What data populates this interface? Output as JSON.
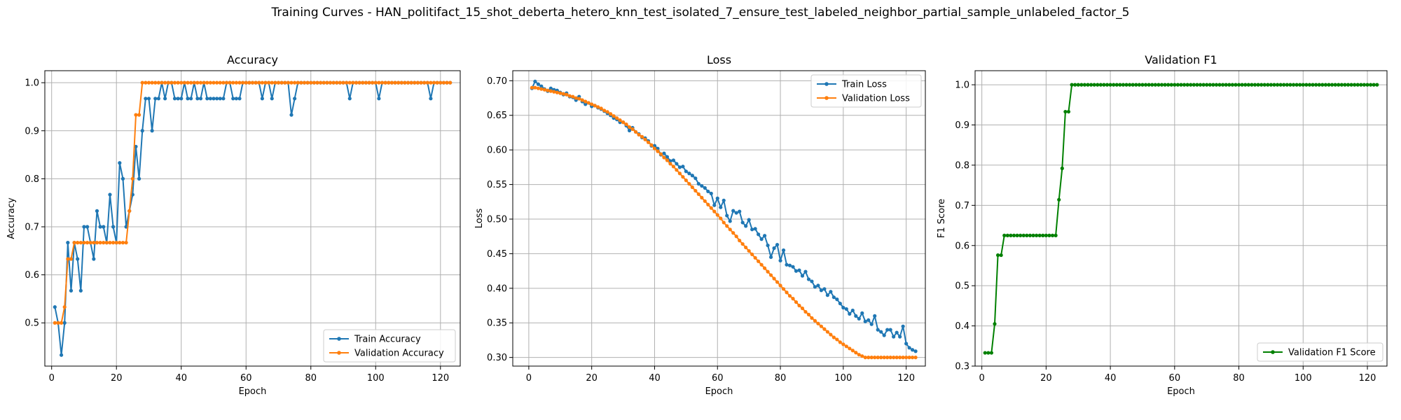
{
  "figure": {
    "suptitle": "Training Curves - HAN_politifact_15_shot_deberta_hetero_knn_test_isolated_7_ensure_test_labeled_neighbor_partial_sample_unlabeled_factor_5"
  },
  "colors": {
    "blue": "#1f77b4",
    "orange": "#ff7f0e",
    "green": "#008000",
    "grid": "#b0b0b0"
  },
  "chart_data": [
    {
      "type": "line",
      "title": "Accuracy",
      "xlabel": "Epoch",
      "ylabel": "Accuracy",
      "xlim": [
        -2.1,
        126.1
      ],
      "ylim": [
        0.41,
        1.025
      ],
      "xticks": [
        0,
        20,
        40,
        60,
        80,
        100,
        120
      ],
      "yticks": [
        0.5,
        0.6,
        0.7,
        0.8,
        0.9,
        1.0
      ],
      "ytick_labels": [
        "0.5",
        "0.6",
        "0.7",
        "0.8",
        "0.9",
        "1.0"
      ],
      "grid": true,
      "legend": "lower right",
      "x_start": 1,
      "series": [
        {
          "name": "Train Accuracy",
          "color": "#1f77b4",
          "values": [
            0.533,
            0.5,
            0.433,
            0.5,
            0.667,
            0.567,
            0.667,
            0.633,
            0.567,
            0.7,
            0.7,
            0.667,
            0.633,
            0.733,
            0.7,
            0.7,
            0.667,
            0.767,
            0.7,
            0.667,
            0.833,
            0.8,
            0.7,
            0.733,
            0.767,
            0.867,
            0.8,
            0.9,
            0.967,
            0.967,
            0.9,
            0.967,
            0.967,
            1.0,
            0.967,
            1.0,
            1.0,
            0.967,
            0.967,
            0.967,
            1.0,
            0.967,
            0.967,
            1.0,
            0.967,
            0.967,
            1.0,
            0.967,
            0.967,
            0.967,
            0.967,
            0.967,
            0.967,
            1.0,
            1.0,
            0.967,
            0.967,
            0.967,
            1.0,
            1.0,
            1.0,
            1.0,
            1.0,
            1.0,
            0.967,
            1.0,
            1.0,
            0.967,
            1.0,
            1.0,
            1.0,
            1.0,
            1.0,
            0.933,
            0.967,
            1.0,
            1.0,
            1.0,
            1.0,
            1.0,
            1.0,
            1.0,
            1.0,
            1.0,
            1.0,
            1.0,
            1.0,
            1.0,
            1.0,
            1.0,
            1.0,
            0.967,
            1.0,
            1.0,
            1.0,
            1.0,
            1.0,
            1.0,
            1.0,
            1.0,
            0.967,
            1.0,
            1.0,
            1.0,
            1.0,
            1.0,
            1.0,
            1.0,
            1.0,
            1.0,
            1.0,
            1.0,
            1.0,
            1.0,
            1.0,
            1.0,
            0.967,
            1.0,
            1.0,
            1.0,
            1.0,
            1.0,
            1.0
          ]
        },
        {
          "name": "Validation Accuracy",
          "color": "#ff7f0e",
          "values": [
            0.5,
            0.5,
            0.5,
            0.533,
            0.633,
            0.633,
            0.667,
            0.667,
            0.667,
            0.667,
            0.667,
            0.667,
            0.667,
            0.667,
            0.667,
            0.667,
            0.667,
            0.667,
            0.667,
            0.667,
            0.667,
            0.667,
            0.667,
            0.733,
            0.8,
            0.933,
            0.933,
            1.0,
            1.0,
            1.0,
            1.0,
            1.0,
            1.0,
            1.0,
            1.0,
            1.0,
            1.0,
            1.0,
            1.0,
            1.0,
            1.0,
            1.0,
            1.0,
            1.0,
            1.0,
            1.0,
            1.0,
            1.0,
            1.0,
            1.0,
            1.0,
            1.0,
            1.0,
            1.0,
            1.0,
            1.0,
            1.0,
            1.0,
            1.0,
            1.0,
            1.0,
            1.0,
            1.0,
            1.0,
            1.0,
            1.0,
            1.0,
            1.0,
            1.0,
            1.0,
            1.0,
            1.0,
            1.0,
            1.0,
            1.0,
            1.0,
            1.0,
            1.0,
            1.0,
            1.0,
            1.0,
            1.0,
            1.0,
            1.0,
            1.0,
            1.0,
            1.0,
            1.0,
            1.0,
            1.0,
            1.0,
            1.0,
            1.0,
            1.0,
            1.0,
            1.0,
            1.0,
            1.0,
            1.0,
            1.0,
            1.0,
            1.0,
            1.0,
            1.0,
            1.0,
            1.0,
            1.0,
            1.0,
            1.0,
            1.0,
            1.0,
            1.0,
            1.0,
            1.0,
            1.0,
            1.0,
            1.0,
            1.0,
            1.0,
            1.0,
            1.0,
            1.0,
            1.0
          ]
        }
      ]
    },
    {
      "type": "line",
      "title": "Loss",
      "xlabel": "Epoch",
      "ylabel": "Loss",
      "xlim": [
        -5.1,
        126.1
      ],
      "ylim": [
        0.2875,
        0.7145
      ],
      "xticks": [
        0,
        20,
        40,
        60,
        80,
        100,
        120
      ],
      "yticks": [
        0.3,
        0.35,
        0.4,
        0.45,
        0.5,
        0.55,
        0.6,
        0.65,
        0.7
      ],
      "ytick_labels": [
        "0.30",
        "0.35",
        "0.40",
        "0.45",
        "0.50",
        "0.55",
        "0.60",
        "0.65",
        "0.70"
      ],
      "grid": true,
      "legend": "upper right",
      "x_start": 1,
      "series": [
        {
          "name": "Train Loss",
          "color": "#1f77b4",
          "values": [
            0.689,
            0.699,
            0.695,
            0.692,
            0.688,
            0.685,
            0.689,
            0.687,
            0.686,
            0.683,
            0.68,
            0.682,
            0.677,
            0.676,
            0.672,
            0.677,
            0.67,
            0.666,
            0.668,
            0.663,
            0.664,
            0.661,
            0.659,
            0.656,
            0.653,
            0.65,
            0.646,
            0.644,
            0.64,
            0.64,
            0.635,
            0.628,
            0.632,
            0.626,
            0.623,
            0.618,
            0.617,
            0.613,
            0.606,
            0.606,
            0.602,
            0.593,
            0.595,
            0.59,
            0.584,
            0.585,
            0.58,
            0.575,
            0.576,
            0.569,
            0.566,
            0.563,
            0.559,
            0.551,
            0.548,
            0.545,
            0.54,
            0.537,
            0.52,
            0.53,
            0.517,
            0.527,
            0.505,
            0.497,
            0.512,
            0.509,
            0.511,
            0.495,
            0.49,
            0.499,
            0.485,
            0.486,
            0.478,
            0.471,
            0.476,
            0.462,
            0.445,
            0.458,
            0.463,
            0.44,
            0.455,
            0.434,
            0.433,
            0.431,
            0.425,
            0.426,
            0.418,
            0.424,
            0.413,
            0.41,
            0.402,
            0.404,
            0.397,
            0.399,
            0.39,
            0.395,
            0.387,
            0.384,
            0.378,
            0.372,
            0.37,
            0.363,
            0.368,
            0.36,
            0.356,
            0.364,
            0.352,
            0.354,
            0.348,
            0.36,
            0.34,
            0.337,
            0.332,
            0.34,
            0.34,
            0.33,
            0.336,
            0.33,
            0.345,
            0.32,
            0.314,
            0.311,
            0.309
          ]
        },
        {
          "name": "Validation Loss",
          "color": "#ff7f0e",
          "values": [
            0.69,
            0.69,
            0.689,
            0.688,
            0.687,
            0.686,
            0.685,
            0.684,
            0.683,
            0.682,
            0.681,
            0.68,
            0.678,
            0.677,
            0.675,
            0.674,
            0.672,
            0.67,
            0.668,
            0.666,
            0.664,
            0.662,
            0.66,
            0.657,
            0.655,
            0.652,
            0.649,
            0.646,
            0.643,
            0.64,
            0.637,
            0.633,
            0.63,
            0.626,
            0.622,
            0.619,
            0.615,
            0.611,
            0.607,
            0.602,
            0.598,
            0.594,
            0.589,
            0.585,
            0.58,
            0.576,
            0.571,
            0.566,
            0.561,
            0.556,
            0.551,
            0.546,
            0.541,
            0.536,
            0.531,
            0.526,
            0.521,
            0.516,
            0.511,
            0.506,
            0.501,
            0.495,
            0.49,
            0.485,
            0.48,
            0.475,
            0.469,
            0.464,
            0.459,
            0.454,
            0.449,
            0.444,
            0.439,
            0.434,
            0.429,
            0.424,
            0.419,
            0.414,
            0.409,
            0.404,
            0.399,
            0.394,
            0.389,
            0.385,
            0.38,
            0.375,
            0.371,
            0.366,
            0.362,
            0.357,
            0.353,
            0.349,
            0.345,
            0.341,
            0.337,
            0.333,
            0.329,
            0.326,
            0.322,
            0.319,
            0.316,
            0.313,
            0.31,
            0.307,
            0.304,
            0.302,
            0.3,
            0.3,
            0.3,
            0.3,
            0.3,
            0.3,
            0.3,
            0.3,
            0.3,
            0.3,
            0.3,
            0.3,
            0.3,
            0.3,
            0.3,
            0.3,
            0.3
          ]
        }
      ]
    },
    {
      "type": "line",
      "title": "Validation F1",
      "xlabel": "Epoch",
      "ylabel": "F1 Score",
      "xlim": [
        -2.1,
        126.1
      ],
      "ylim": [
        0.3,
        1.035
      ],
      "xticks": [
        0,
        20,
        40,
        60,
        80,
        100,
        120
      ],
      "yticks": [
        0.3,
        0.4,
        0.5,
        0.6,
        0.7,
        0.8,
        0.9,
        1.0
      ],
      "ytick_labels": [
        "0.3",
        "0.4",
        "0.5",
        "0.6",
        "0.7",
        "0.8",
        "0.9",
        "1.0"
      ],
      "grid": true,
      "legend": "lower right",
      "x_start": 1,
      "series": [
        {
          "name": "Validation F1 Score",
          "color": "#008000",
          "values": [
            0.333,
            0.333,
            0.333,
            0.405,
            0.576,
            0.576,
            0.625,
            0.625,
            0.625,
            0.625,
            0.625,
            0.625,
            0.625,
            0.625,
            0.625,
            0.625,
            0.625,
            0.625,
            0.625,
            0.625,
            0.625,
            0.625,
            0.625,
            0.714,
            0.792,
            0.933,
            0.933,
            1.0,
            1.0,
            1.0,
            1.0,
            1.0,
            1.0,
            1.0,
            1.0,
            1.0,
            1.0,
            1.0,
            1.0,
            1.0,
            1.0,
            1.0,
            1.0,
            1.0,
            1.0,
            1.0,
            1.0,
            1.0,
            1.0,
            1.0,
            1.0,
            1.0,
            1.0,
            1.0,
            1.0,
            1.0,
            1.0,
            1.0,
            1.0,
            1.0,
            1.0,
            1.0,
            1.0,
            1.0,
            1.0,
            1.0,
            1.0,
            1.0,
            1.0,
            1.0,
            1.0,
            1.0,
            1.0,
            1.0,
            1.0,
            1.0,
            1.0,
            1.0,
            1.0,
            1.0,
            1.0,
            1.0,
            1.0,
            1.0,
            1.0,
            1.0,
            1.0,
            1.0,
            1.0,
            1.0,
            1.0,
            1.0,
            1.0,
            1.0,
            1.0,
            1.0,
            1.0,
            1.0,
            1.0,
            1.0,
            1.0,
            1.0,
            1.0,
            1.0,
            1.0,
            1.0,
            1.0,
            1.0,
            1.0,
            1.0,
            1.0,
            1.0,
            1.0,
            1.0,
            1.0,
            1.0,
            1.0,
            1.0,
            1.0,
            1.0,
            1.0,
            1.0,
            1.0
          ]
        }
      ]
    }
  ]
}
